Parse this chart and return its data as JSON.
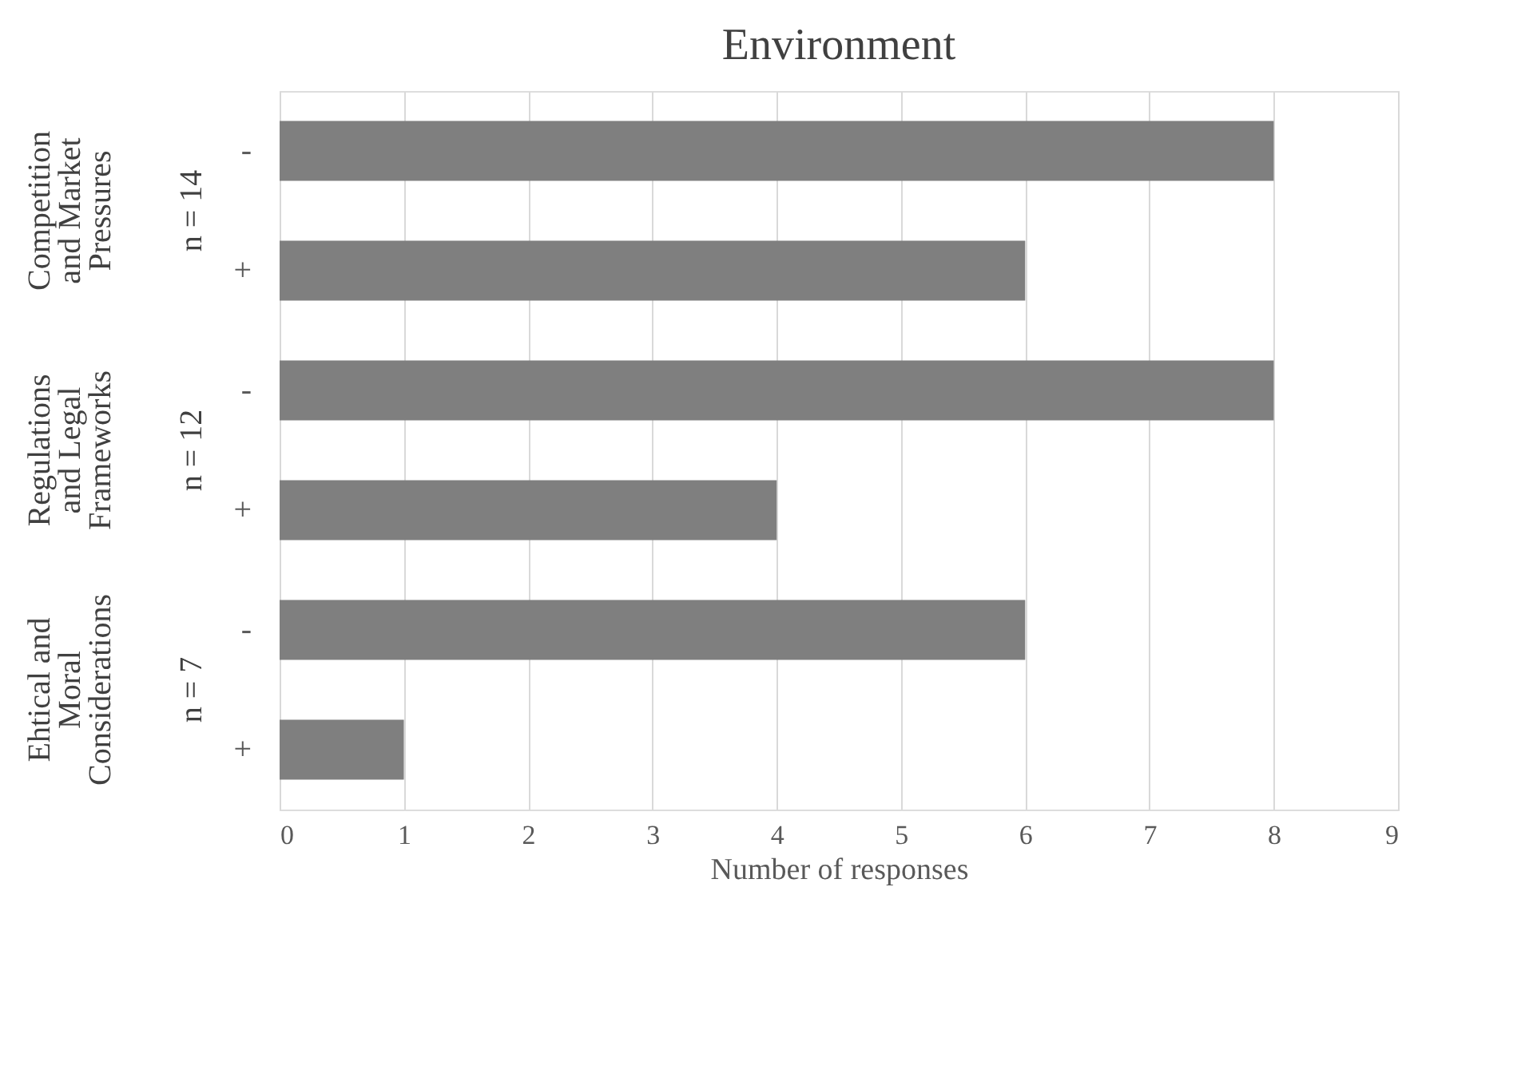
{
  "chart_data": {
    "type": "bar",
    "orientation": "horizontal",
    "title": "Environment",
    "xlabel": "Number of responses",
    "categories": [
      "-",
      "+",
      "-",
      "+",
      "-",
      "+"
    ],
    "values": [
      8,
      6,
      8,
      4,
      6,
      1
    ],
    "color": "#7f7f7f",
    "xlim": [
      0,
      9
    ],
    "xticks": [
      0,
      1,
      2,
      3,
      4,
      5,
      6,
      7,
      8,
      9
    ],
    "grid": "x",
    "annotations": [
      "Competition and Market Pressures",
      "n = 14",
      "Regulations and Legal Frameworks",
      "n = 12",
      "Ehtical and Moral Considerations",
      "n = 7"
    ]
  }
}
